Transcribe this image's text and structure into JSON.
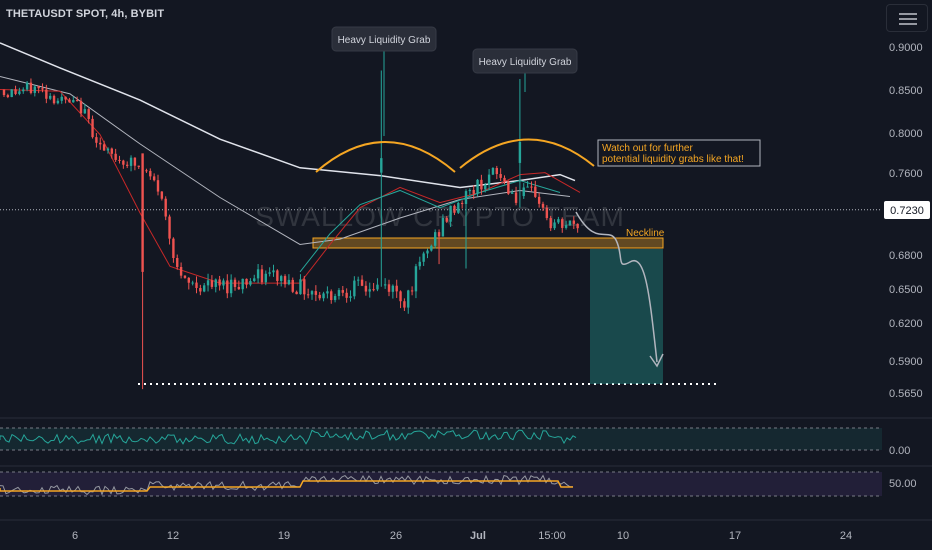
{
  "symbol_title": "THETAUSDT SPOT, 4h, BYBIT",
  "watermark": "SWALLOW CRYPTO TEAM",
  "current_price_label": "0.7230",
  "colors": {
    "background": "#131722",
    "up": "#26a69a",
    "down": "#ef5350",
    "orange": "#f5a623",
    "grid_text": "#b2b5be"
  },
  "chart_data": {
    "type": "candlestick",
    "price_axis": {
      "ticks": [
        "0.9000",
        "0.8500",
        "0.8000",
        "0.7600",
        "0.7230",
        "0.6800",
        "0.6500",
        "0.6200",
        "0.5900",
        "0.5650"
      ],
      "current": 0.723,
      "scale": "log"
    },
    "time_axis": {
      "ticks": [
        "6",
        "12",
        "19",
        "26",
        "Jul",
        "15:00",
        "10",
        "17",
        "24"
      ]
    },
    "annotations": [
      {
        "text": "Heavy Liquidity Grab",
        "type": "callout"
      },
      {
        "text": "Heavy Liquidity Grab",
        "type": "callout"
      },
      {
        "text": "Watch out for further potential liquidity grabs like that!",
        "type": "note"
      },
      {
        "text": "Neckline",
        "type": "label"
      }
    ],
    "levels": {
      "neckline": 0.686,
      "support_dotted": 0.57,
      "target": 0.595
    },
    "indicators": [
      {
        "panel": "oscillator-1",
        "tick": "0.00"
      },
      {
        "panel": "oscillator-2",
        "tick": "50.00"
      }
    ]
  }
}
